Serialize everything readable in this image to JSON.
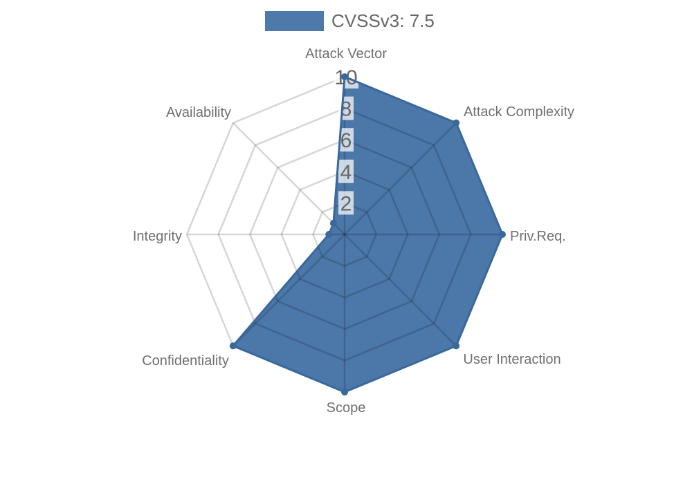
{
  "legend": {
    "label": "CVSSv3: 7.5",
    "swatch_color": "#4d79ab",
    "text_color": "#666666"
  },
  "chart_data": {
    "type": "radar",
    "title": "CVSSv3: 7.5",
    "categories": [
      "Attack Vector",
      "Attack Complexity",
      "Priv.Req.",
      "User Interaction",
      "Scope",
      "Confidentiality",
      "Integrity",
      "Availability"
    ],
    "series": [
      {
        "name": "CVSSv3: 7.5",
        "values": [
          10,
          10,
          10,
          10,
          10,
          10,
          1,
          1
        ]
      }
    ],
    "rmin": 0,
    "rmax": 10,
    "ticks": [
      2,
      4,
      6,
      8,
      10
    ],
    "start_axis": "top",
    "direction": "clockwise",
    "grid": true,
    "legend_position": "top-center",
    "fill_color": "#4b77a9",
    "stroke_color": "#3a689c",
    "point_color": "#3a689c",
    "grid_color": "rgba(0,0,0,0.16)",
    "label_color": "#6f6f6f",
    "tick_color": "#666666",
    "tick_backdrop_color": "rgba(255,255,255,0.72)"
  }
}
